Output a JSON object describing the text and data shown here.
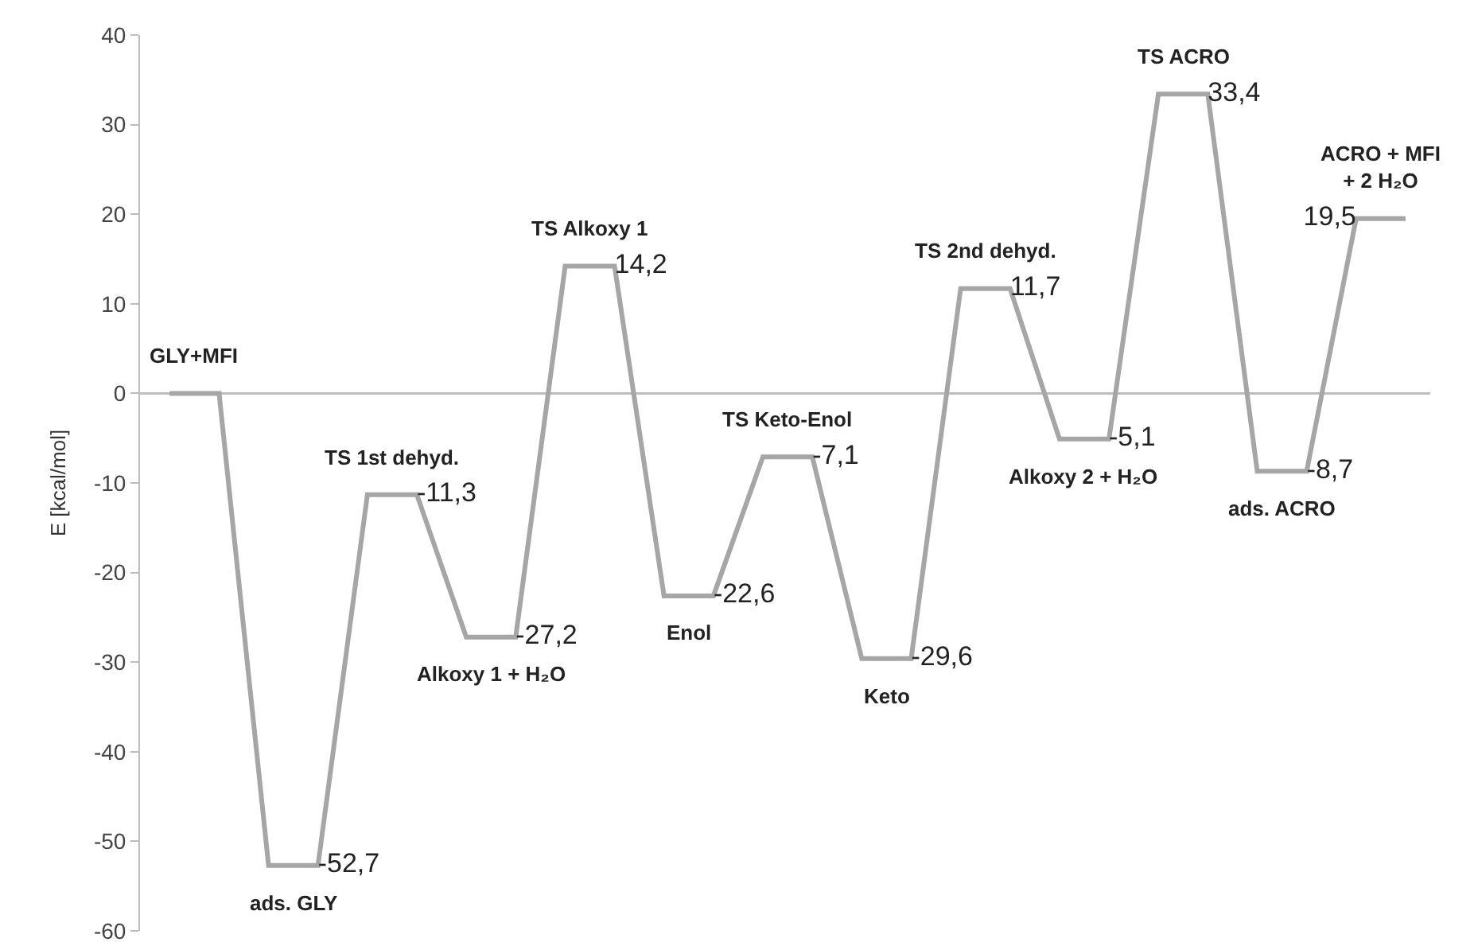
{
  "chart_data": {
    "type": "line",
    "ylabel": "E [kcal/mol]",
    "categories": [
      null,
      null,
      null,
      null,
      null,
      null,
      null,
      null,
      null,
      null,
      null,
      null,
      null,
      null,
      null,
      null,
      null,
      null,
      null,
      null,
      null,
      null,
      null,
      null,
      null,
      null
    ],
    "series": [
      {
        "color": "#a6a6a6",
        "values": [
          0,
          0,
          -52.7,
          -52.7,
          -11.3,
          -11.3,
          -27.2,
          -27.2,
          14.2,
          14.2,
          -22.6,
          -22.6,
          -7.1,
          -7.1,
          -29.6,
          -29.6,
          11.7,
          11.7,
          -5.1,
          -5.1,
          33.4,
          33.4,
          -8.7,
          -8.7,
          19.5,
          19.5
        ],
        "value_labels": [
          null,
          null,
          null,
          "-52,7",
          null,
          "-11,3",
          null,
          "-27,2",
          null,
          "14,2",
          null,
          "-22,6",
          null,
          "-7,1",
          null,
          "-29,6",
          null,
          "11,7",
          null,
          "-5,1",
          null,
          "33,4",
          null,
          "-8,7",
          "19,5",
          null
        ]
      }
    ],
    "ylim": [
      -60,
      40
    ],
    "yticks": [
      -60,
      -50,
      -40,
      -30,
      -20,
      -10,
      0,
      10,
      20,
      30,
      40
    ],
    "tick_labels": "y",
    "grid": false,
    "ref_lines": [
      {
        "axis": "y",
        "value": 0,
        "color": "#bdbdbd"
      }
    ],
    "legend": false,
    "marker": "none",
    "line_style": "solid",
    "annotations": [
      "GLY+MFI",
      "ads. GLY",
      "TS 1st dehyd.",
      "Alkoxy 1 + H₂O",
      "TS Alkoxy 1",
      "Enol",
      "TS Keto-Enol",
      "Keto",
      "TS 2nd dehyd.",
      "Alkoxy 2 + H₂O",
      "TS ACRO",
      "ads. ACRO",
      "ACRO + MFI\n+ 2 H₂O"
    ]
  }
}
